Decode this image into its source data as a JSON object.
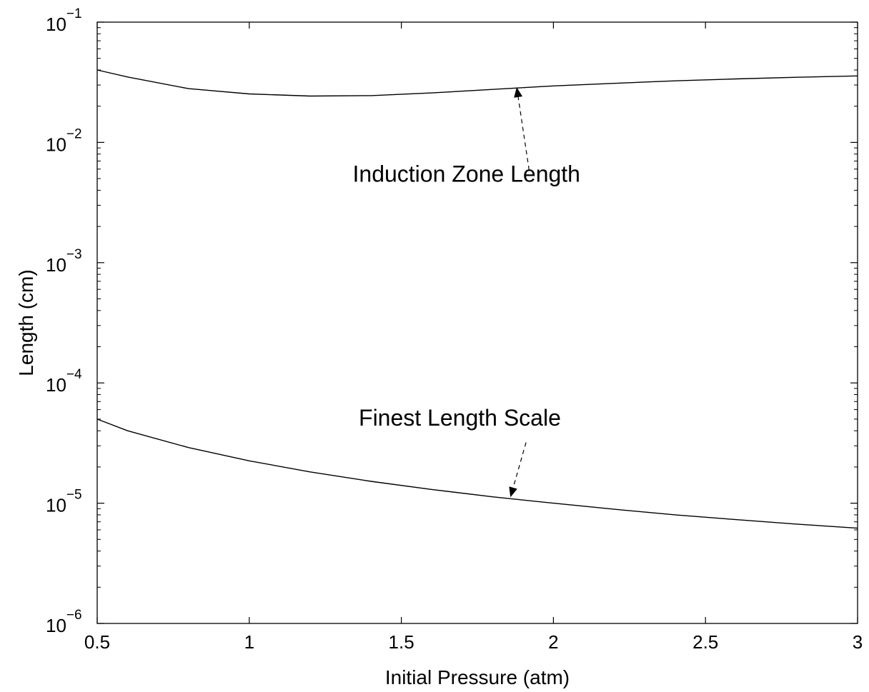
{
  "chart_data": {
    "type": "line",
    "xlabel": "Initial Pressure (atm)",
    "ylabel": "Length (cm)",
    "xlim": [
      0.5,
      3
    ],
    "ylim": [
      1e-06,
      0.1
    ],
    "yscale": "log",
    "grid": false,
    "x_ticks": [
      {
        "value": 0.5,
        "label": "0.5"
      },
      {
        "value": 1,
        "label": "1"
      },
      {
        "value": 1.5,
        "label": "1.5"
      },
      {
        "value": 2,
        "label": "2"
      },
      {
        "value": 2.5,
        "label": "2.5"
      },
      {
        "value": 3,
        "label": "3"
      }
    ],
    "y_ticks": [
      {
        "value": 1e-06,
        "base": "10",
        "exp": "−6"
      },
      {
        "value": 1e-05,
        "base": "10",
        "exp": "−5"
      },
      {
        "value": 0.0001,
        "base": "10",
        "exp": "−4"
      },
      {
        "value": 0.001,
        "base": "10",
        "exp": "−3"
      },
      {
        "value": 0.01,
        "base": "10",
        "exp": "−2"
      },
      {
        "value": 0.1,
        "base": "10",
        "exp": "−1"
      }
    ],
    "series": [
      {
        "x": [
          0.5,
          0.6,
          0.8,
          1.0,
          1.2,
          1.4,
          1.6,
          1.8,
          2.0,
          2.2,
          2.4,
          2.6,
          2.8,
          3.0
        ],
        "y": [
          0.04,
          0.035,
          0.028,
          0.0253,
          0.0243,
          0.0245,
          0.0258,
          0.0276,
          0.0295,
          0.031,
          0.0325,
          0.0337,
          0.0348,
          0.0357
        ]
      },
      {
        "x": [
          0.5,
          0.6,
          0.8,
          1.0,
          1.2,
          1.4,
          1.6,
          1.8,
          2.0,
          2.2,
          2.4,
          2.6,
          2.8,
          3.0
        ],
        "y": [
          5e-05,
          4e-05,
          2.9e-05,
          2.25e-05,
          1.82e-05,
          1.52e-05,
          1.3e-05,
          1.13e-05,
          1e-05,
          8.9e-06,
          8e-06,
          7.3e-06,
          6.7e-06,
          6.2e-06
        ]
      }
    ],
    "annotations": [
      {
        "text": "Induction Zone Length",
        "text_x": 1.34,
        "text_y": 0.0047,
        "arrow_from": [
          1.92,
          0.0059
        ],
        "arrow_to": [
          1.88,
          0.028
        ]
      },
      {
        "text": "Finest Length Scale",
        "text_x": 1.36,
        "text_y": 4.4e-05,
        "arrow_from": [
          1.91,
          3.2e-05
        ],
        "arrow_to": [
          1.86,
          1.15e-05
        ]
      }
    ]
  }
}
